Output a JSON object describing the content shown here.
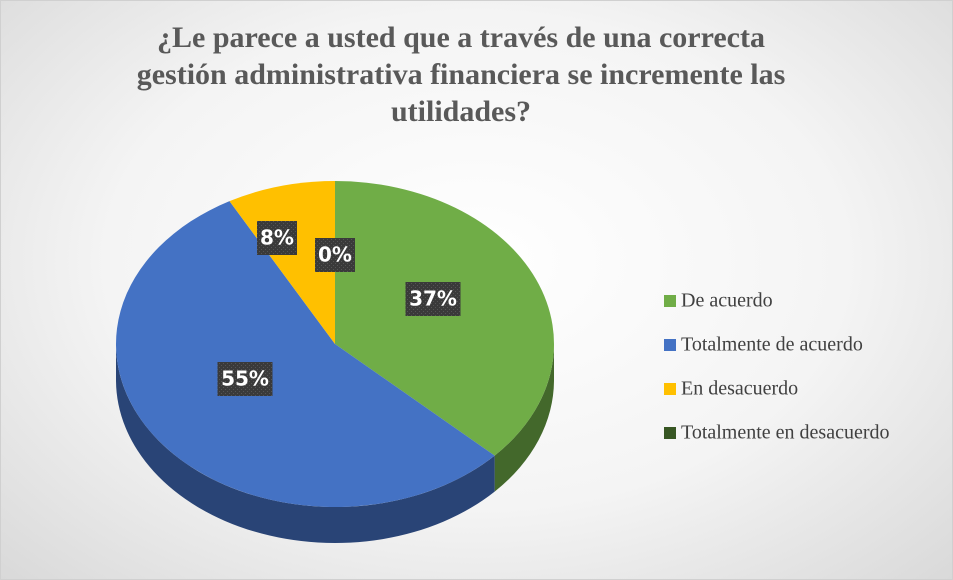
{
  "chart_data": {
    "type": "pie",
    "title": "¿Le parece a usted que a través de una correcta gestión administrativa financiera se incremente las utilidades?",
    "categories": [
      "De acuerdo",
      "Totalmente de acuerdo",
      "En desacuerdo",
      "Totalmente en desacuerdo"
    ],
    "values": [
      37,
      55,
      8,
      0
    ],
    "value_labels": [
      "37%",
      "55%",
      "8%",
      "0%"
    ],
    "colors": [
      "#70ad47",
      "#4472c4",
      "#ffc000",
      "#375623"
    ],
    "legend": "right"
  }
}
